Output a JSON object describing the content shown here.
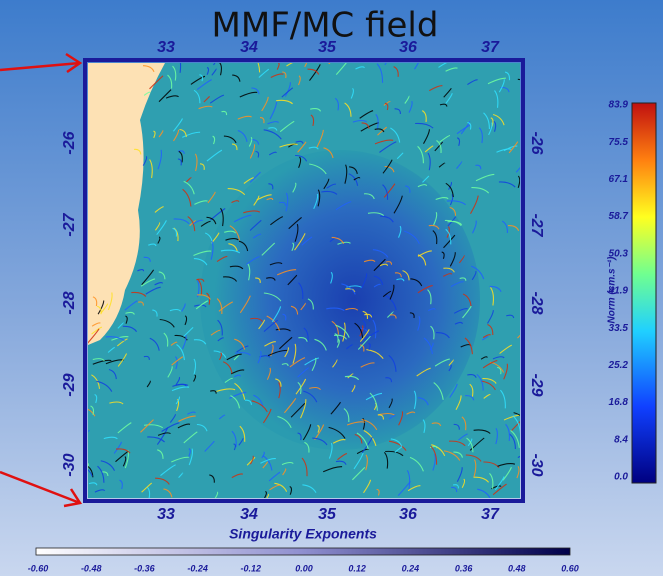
{
  "title": "MMF/MC field",
  "map": {
    "top_ticks": [
      "33",
      "34",
      "35",
      "36",
      "37"
    ],
    "bottom_ticks": [
      "33",
      "34",
      "35",
      "36",
      "37"
    ],
    "left_ticks": [
      "-26",
      "-27",
      "-28",
      "-29",
      "-30"
    ],
    "right_ticks": [
      "-26",
      "-27",
      "-28",
      "-29",
      "-30"
    ]
  },
  "norm_colorbar": {
    "label": "Norm (cm.s⁻¹)",
    "ticks": [
      "83.9",
      "75.5",
      "67.1",
      "58.7",
      "50.3",
      "41.9",
      "33.5",
      "25.2",
      "16.8",
      "8.4",
      "0.0"
    ]
  },
  "exponent_colorbar": {
    "label": "Singularity Exponents",
    "ticks": [
      "-0.60",
      "-0.48",
      "-0.36",
      "-0.24",
      "-0.12",
      "0.00",
      "0.12",
      "0.24",
      "0.36",
      "0.48",
      "0.60"
    ]
  }
}
